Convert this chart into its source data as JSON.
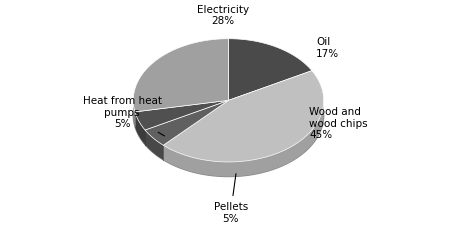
{
  "labels": [
    "Oil",
    "Wood and\nwood chips",
    "Pellets",
    "Heat from heat\npumps",
    "Electricity"
  ],
  "values": [
    17,
    45,
    5,
    5,
    28
  ],
  "colors_top": [
    "#4a4a4a",
    "#c0c0c0",
    "#606060",
    "#505050",
    "#a0a0a0"
  ],
  "colors_side": [
    "#3a3a3a",
    "#a0a0a0",
    "#484848",
    "#3c3c3c",
    "#888888"
  ],
  "startangle": 90,
  "figsize": [
    4.57,
    2.28
  ],
  "dpi": 100
}
